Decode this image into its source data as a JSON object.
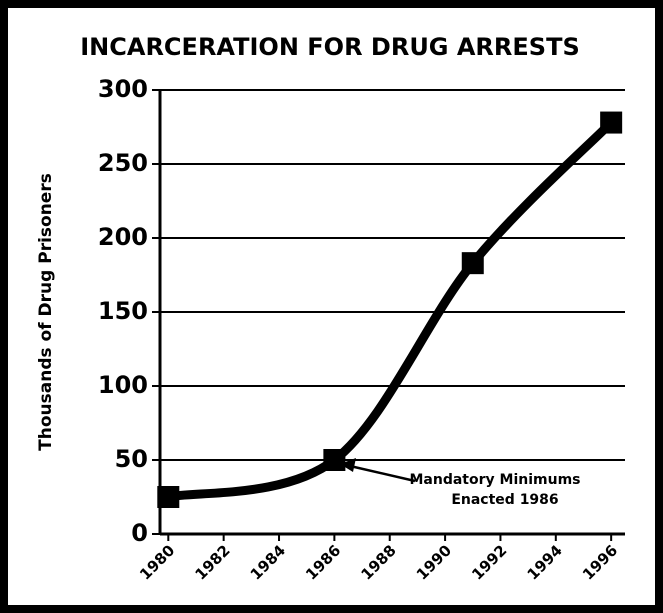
{
  "chart_data": {
    "type": "line",
    "title": "INCARCERATION FOR DRUG ARRESTS",
    "y_label": "Thousands of Drug Prisoners",
    "x": [
      1980,
      1986,
      1991,
      1996
    ],
    "series": [
      {
        "name": "Drug Prisoners",
        "color": "#000000",
        "values": [
          25,
          50,
          183,
          278
        ]
      }
    ],
    "xlim": [
      1979.7,
      1996.5
    ],
    "xticks": [
      1980,
      1982,
      1984,
      1986,
      1988,
      1990,
      1992,
      1994,
      1996
    ],
    "ylim": [
      0,
      300
    ],
    "yticks": [
      0,
      50,
      100,
      150,
      200,
      250,
      300
    ],
    "grid": true,
    "annotation": [
      "Mandatory Minimums",
      "Enacted 1986"
    ]
  }
}
